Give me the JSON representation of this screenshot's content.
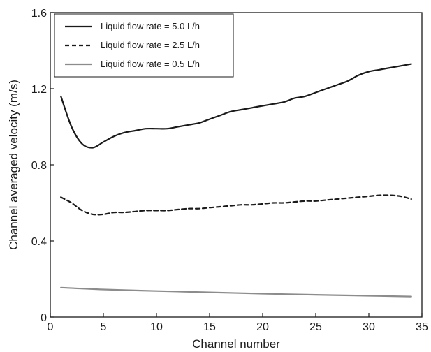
{
  "chart_data": {
    "type": "line",
    "title": "",
    "xlabel": "Channel number",
    "ylabel": "Channel averaged velocity (m/s)",
    "xlim": [
      0,
      35
    ],
    "ylim": [
      0,
      1.6
    ],
    "xticks": [
      0,
      5,
      10,
      15,
      20,
      25,
      30,
      35
    ],
    "yticks": [
      0,
      0.4,
      0.8,
      1.2,
      1.6
    ],
    "xtick_labels": [
      "0",
      "5",
      "10",
      "15",
      "20",
      "25",
      "30",
      "35"
    ],
    "ytick_labels": [
      "0",
      "0.4",
      "0.8",
      "1.2",
      "1.6"
    ],
    "grid": false,
    "legend_position": "top-left",
    "series": [
      {
        "name": "Liquid flow rate = 5.0 L/h",
        "color": "#1a1a1a",
        "dash": "solid",
        "x": [
          1,
          2,
          3,
          4,
          5,
          6,
          7,
          8,
          9,
          10,
          11,
          12,
          13,
          14,
          15,
          16,
          17,
          18,
          19,
          20,
          21,
          22,
          23,
          24,
          25,
          26,
          27,
          28,
          29,
          30,
          31,
          32,
          33,
          34
        ],
        "y": [
          1.16,
          1.0,
          0.91,
          0.89,
          0.92,
          0.95,
          0.97,
          0.98,
          0.99,
          0.99,
          0.99,
          1.0,
          1.01,
          1.02,
          1.04,
          1.06,
          1.08,
          1.09,
          1.1,
          1.11,
          1.12,
          1.13,
          1.15,
          1.16,
          1.18,
          1.2,
          1.22,
          1.24,
          1.27,
          1.29,
          1.3,
          1.31,
          1.32,
          1.33
        ]
      },
      {
        "name": "Liquid flow rate = 2.5 L/h",
        "color": "#1a1a1a",
        "dash": "dashed",
        "x": [
          1,
          2,
          3,
          4,
          5,
          6,
          7,
          8,
          9,
          10,
          11,
          12,
          13,
          14,
          15,
          16,
          17,
          18,
          19,
          20,
          21,
          22,
          23,
          24,
          25,
          26,
          27,
          28,
          29,
          30,
          31,
          32,
          33,
          34
        ],
        "y": [
          0.63,
          0.6,
          0.56,
          0.54,
          0.54,
          0.55,
          0.55,
          0.555,
          0.56,
          0.56,
          0.56,
          0.565,
          0.57,
          0.57,
          0.575,
          0.58,
          0.585,
          0.59,
          0.59,
          0.595,
          0.6,
          0.6,
          0.605,
          0.61,
          0.61,
          0.615,
          0.62,
          0.625,
          0.63,
          0.635,
          0.64,
          0.64,
          0.635,
          0.62
        ]
      },
      {
        "name": "Liquid flow rate = 0.5 L/h",
        "color": "#8c8c8c",
        "dash": "solid",
        "x": [
          1,
          5,
          10,
          15,
          20,
          25,
          30,
          34
        ],
        "y": [
          0.155,
          0.145,
          0.137,
          0.13,
          0.123,
          0.117,
          0.112,
          0.108
        ]
      }
    ]
  }
}
